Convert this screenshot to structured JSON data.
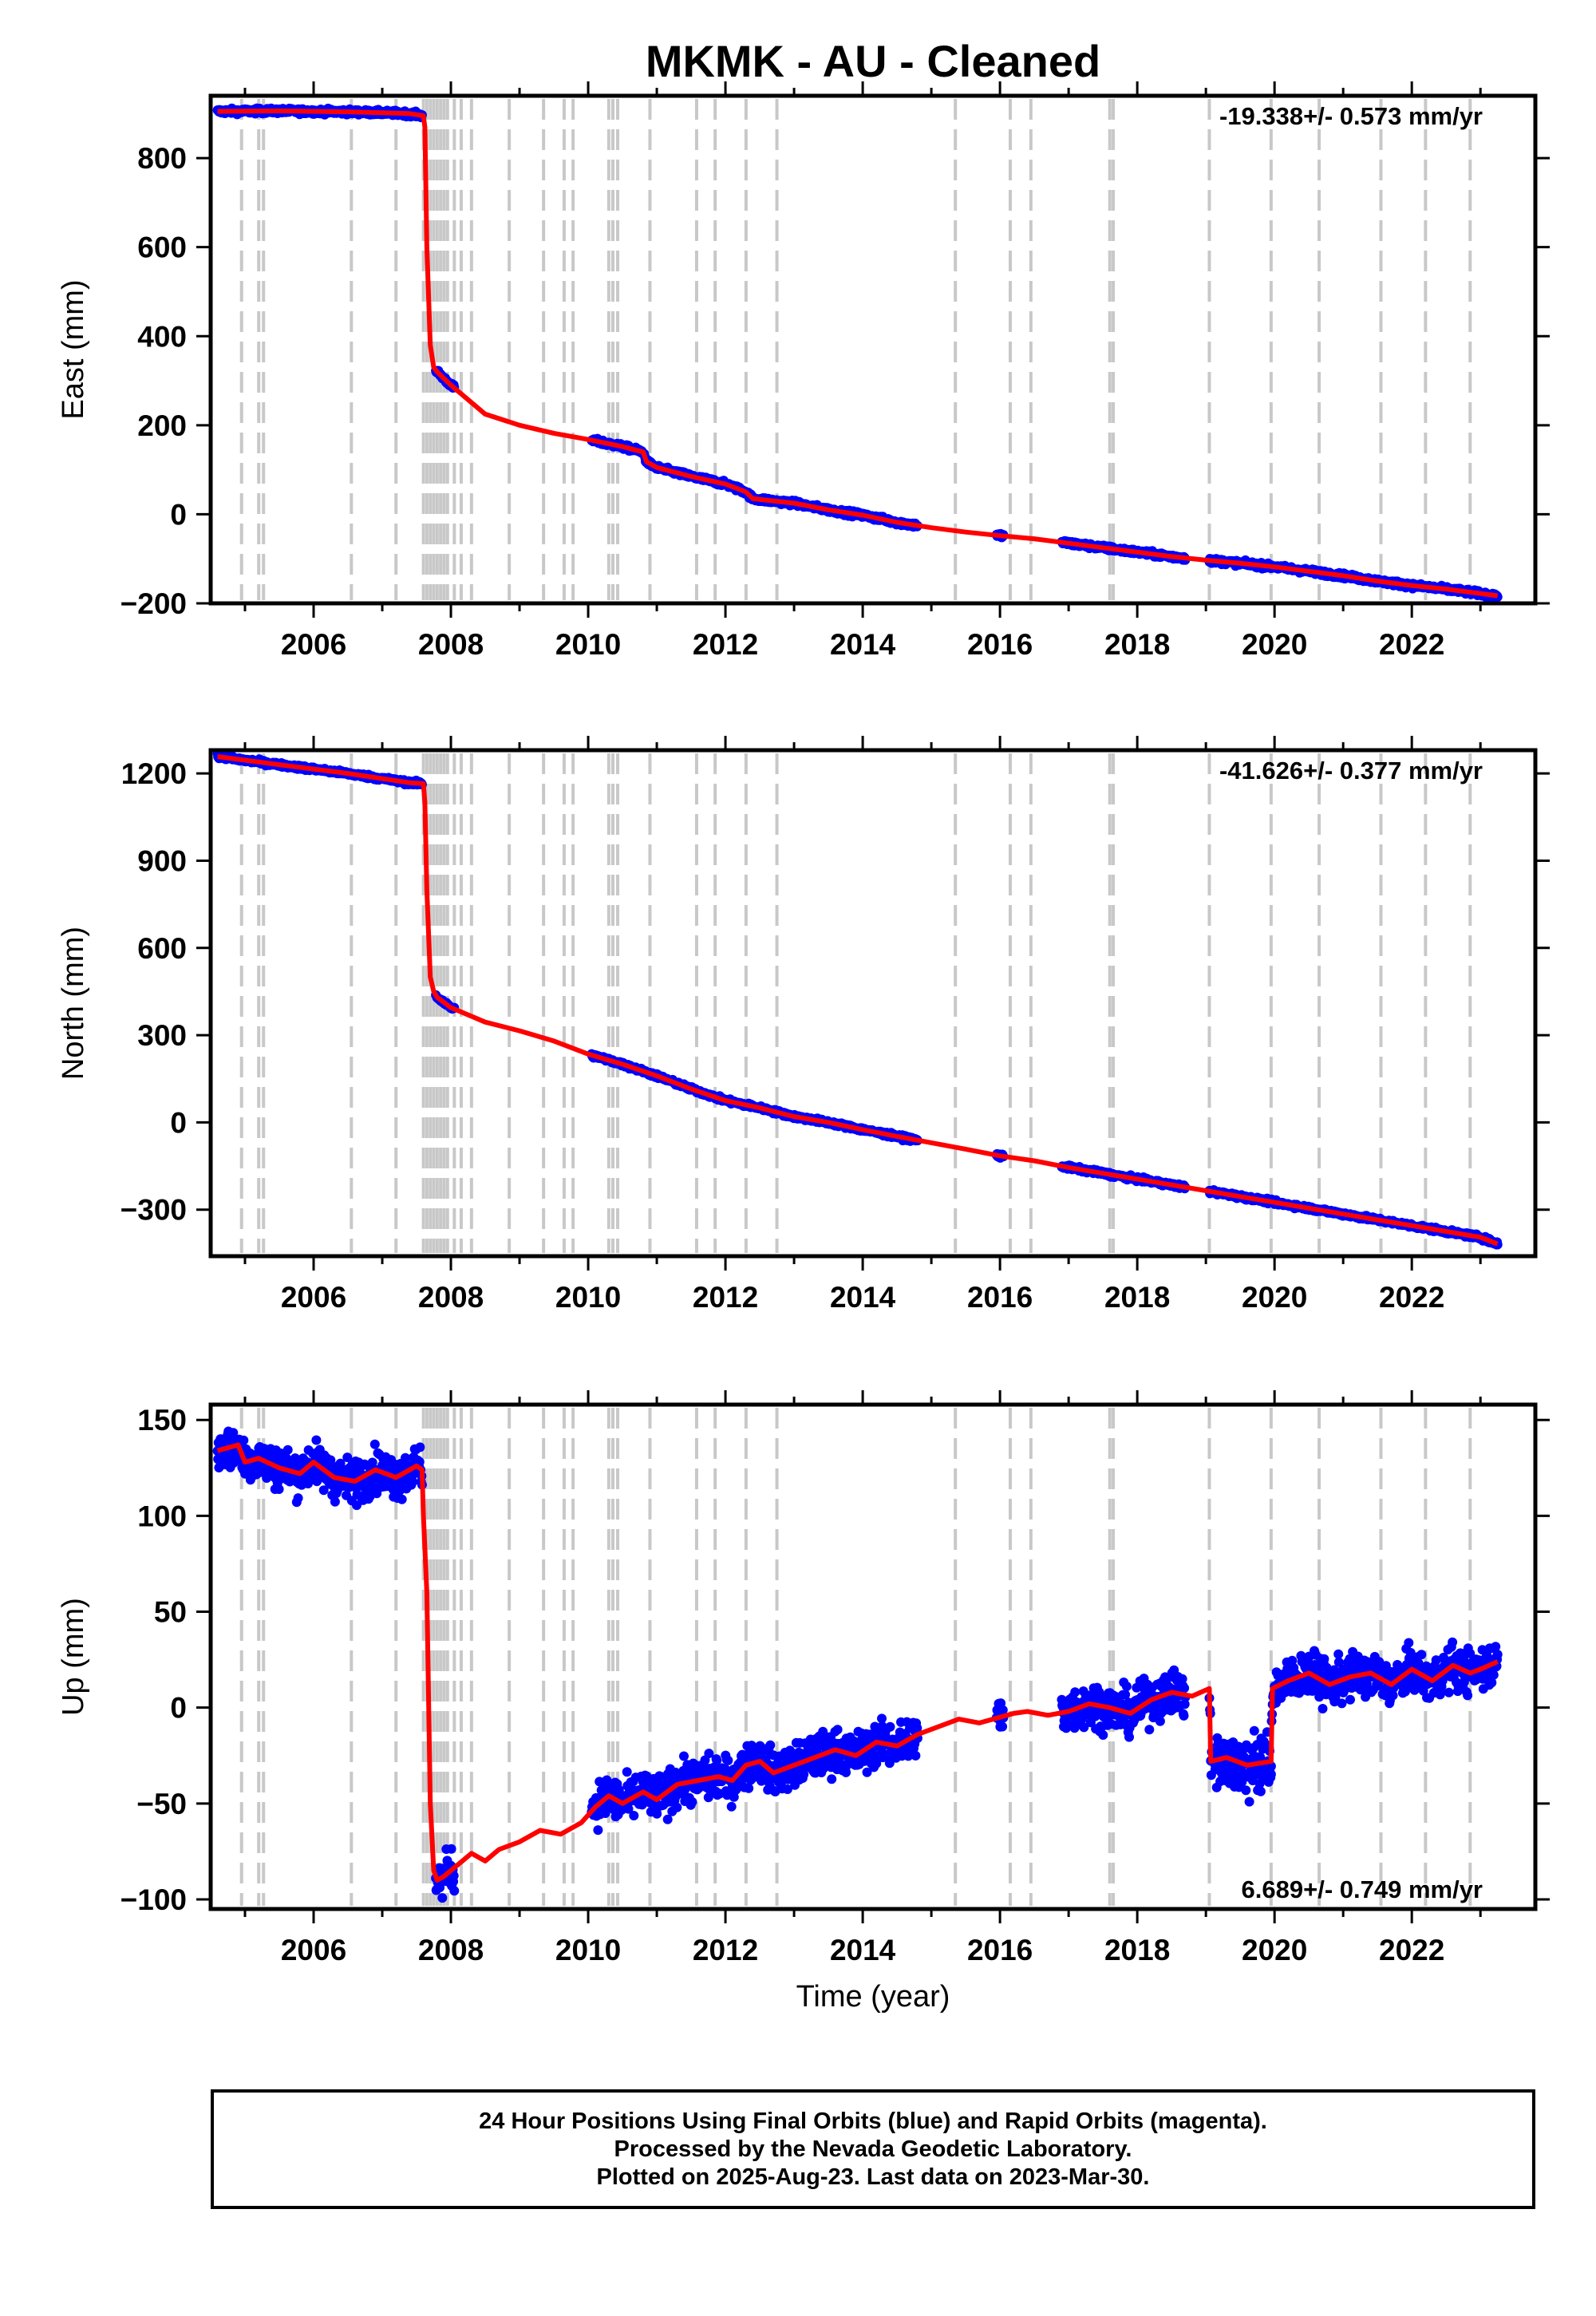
{
  "title": "MKMK  - AU - Cleaned",
  "colors": {
    "points": "#0000ff",
    "model": "#ff0000",
    "offset_lines": "#c8c8c8",
    "frame": "#000000"
  },
  "chart_data": [
    {
      "type": "scatter",
      "ylabel": "East (mm)",
      "xlabel": "",
      "rate_text": "-19.338+/- 0.573 mm/yr",
      "rate_position": "top-right",
      "xlim": [
        2004.5,
        2023.8
      ],
      "ylim": [
        -200,
        940
      ],
      "xticks": [
        2006,
        2008,
        2010,
        2012,
        2014,
        2016,
        2018,
        2020,
        2022
      ],
      "yticks": [
        -200,
        0,
        200,
        400,
        600,
        800
      ],
      "model": {
        "x": [
          2004.6,
          2005.5,
          2006.5,
          2007.4,
          2007.6,
          2007.62,
          2007.65,
          2007.7,
          2007.75,
          2007.8,
          2008.0,
          2008.5,
          2009.0,
          2009.5,
          2010.0,
          2010.5,
          2010.8,
          2010.85,
          2011.0,
          2011.5,
          2012.0,
          2012.3,
          2012.4,
          2013.0,
          2013.5,
          2014.0,
          2014.5,
          2015.0,
          2015.5,
          2016.0,
          2016.5,
          2017.0,
          2017.5,
          2018.0,
          2018.5,
          2019.0,
          2019.5,
          2020.0,
          2020.5,
          2021.0,
          2021.5,
          2022.0,
          2022.5,
          2023.0,
          2023.25
        ],
        "y": [
          905,
          906,
          904,
          900,
          895,
          870,
          600,
          380,
          330,
          320,
          290,
          225,
          200,
          182,
          168,
          152,
          140,
          118,
          105,
          85,
          68,
          50,
          35,
          25,
          10,
          -2,
          -18,
          -30,
          -40,
          -48,
          -55,
          -65,
          -75,
          -85,
          -95,
          -103,
          -110,
          -118,
          -128,
          -138,
          -150,
          -160,
          -168,
          -178,
          -183
        ]
      },
      "offsets": [
        2004.95,
        2005.2,
        2005.27,
        2006.55,
        2007.2,
        2007.6,
        2007.65,
        2007.7,
        2007.75,
        2007.8,
        2007.85,
        2007.9,
        2007.95,
        2008.05,
        2008.15,
        2008.3,
        2008.85,
        2009.35,
        2009.65,
        2009.78,
        2010.3,
        2010.36,
        2010.43,
        2010.9,
        2011.58,
        2011.85,
        2012.3,
        2012.75,
        2015.35,
        2016.15,
        2016.45,
        2017.6,
        2017.65,
        2019.05,
        2019.95,
        2020.65,
        2021.55,
        2022.2,
        2022.85
      ]
    },
    {
      "type": "scatter",
      "ylabel": "North (mm)",
      "xlabel": "",
      "rate_text": "-41.626+/- 0.377 mm/yr",
      "rate_position": "top-right",
      "xlim": [
        2004.5,
        2023.8
      ],
      "ylim": [
        -460,
        1280
      ],
      "xticks": [
        2006,
        2008,
        2010,
        2012,
        2014,
        2016,
        2018,
        2020,
        2022
      ],
      "yticks": [
        -300,
        0,
        300,
        600,
        900,
        1200
      ],
      "model": {
        "x": [
          2004.6,
          2005.5,
          2006.5,
          2007.4,
          2007.6,
          2007.62,
          2007.65,
          2007.7,
          2007.75,
          2007.8,
          2008.0,
          2008.5,
          2009.0,
          2009.5,
          2010.0,
          2010.5,
          2011.0,
          2011.5,
          2012.0,
          2012.5,
          2013.0,
          2013.5,
          2014.0,
          2014.5,
          2015.0,
          2015.5,
          2016.0,
          2016.5,
          2017.0,
          2017.5,
          2018.0,
          2018.5,
          2019.0,
          2019.5,
          2020.0,
          2020.5,
          2021.0,
          2021.5,
          2022.0,
          2022.5,
          2023.0,
          2023.25
        ],
        "y": [
          1258,
          1230,
          1200,
          1168,
          1165,
          1100,
          800,
          500,
          450,
          430,
          395,
          345,
          315,
          280,
          235,
          200,
          160,
          115,
          75,
          50,
          20,
          0,
          -25,
          -48,
          -70,
          -92,
          -115,
          -132,
          -155,
          -175,
          -195,
          -215,
          -235,
          -255,
          -275,
          -295,
          -315,
          -335,
          -355,
          -375,
          -395,
          -418
        ]
      },
      "offsets": [
        2004.95,
        2005.2,
        2005.27,
        2006.55,
        2007.2,
        2007.6,
        2007.65,
        2007.7,
        2007.75,
        2007.8,
        2007.85,
        2007.9,
        2007.95,
        2008.05,
        2008.15,
        2008.3,
        2008.85,
        2009.35,
        2009.65,
        2009.78,
        2010.3,
        2010.36,
        2010.43,
        2010.9,
        2011.58,
        2011.85,
        2012.3,
        2012.75,
        2015.35,
        2016.15,
        2016.45,
        2017.6,
        2017.65,
        2019.05,
        2019.95,
        2020.65,
        2021.55,
        2022.2,
        2022.85
      ]
    },
    {
      "type": "scatter",
      "ylabel": "Up (mm)",
      "xlabel": "Time (year)",
      "rate_text": "6.689+/- 0.749 mm/yr",
      "rate_position": "bottom-right",
      "xlim": [
        2004.5,
        2023.8
      ],
      "ylim": [
        -105,
        158
      ],
      "xticks": [
        2006,
        2008,
        2010,
        2012,
        2014,
        2016,
        2018,
        2020,
        2022
      ],
      "yticks": [
        -100,
        -50,
        0,
        50,
        100,
        150
      ],
      "model": {
        "x": [
          2004.6,
          2004.9,
          2005.0,
          2005.2,
          2005.5,
          2005.8,
          2006.0,
          2006.3,
          2006.6,
          2006.9,
          2007.2,
          2007.5,
          2007.58,
          2007.6,
          2007.65,
          2007.7,
          2007.75,
          2007.8,
          2007.9,
          2008.1,
          2008.3,
          2008.5,
          2008.7,
          2009.0,
          2009.3,
          2009.6,
          2009.9,
          2010.1,
          2010.3,
          2010.5,
          2010.8,
          2011.0,
          2011.3,
          2011.6,
          2011.9,
          2012.1,
          2012.3,
          2012.5,
          2012.7,
          2013.0,
          2013.3,
          2013.6,
          2013.9,
          2014.2,
          2014.5,
          2014.8,
          2015.1,
          2015.4,
          2015.7,
          2016.0,
          2016.2,
          2016.4,
          2016.7,
          2017.0,
          2017.3,
          2017.6,
          2017.9,
          2018.2,
          2018.5,
          2018.8,
          2019.05,
          2019.07,
          2019.3,
          2019.6,
          2019.95,
          2019.97,
          2020.2,
          2020.5,
          2020.8,
          2021.1,
          2021.4,
          2021.7,
          2022.0,
          2022.3,
          2022.6,
          2022.85,
          2023.0,
          2023.25
        ],
        "y": [
          134,
          137,
          128,
          130,
          125,
          122,
          128,
          120,
          118,
          124,
          120,
          126,
          124,
          100,
          60,
          -50,
          -85,
          -90,
          -88,
          -82,
          -76,
          -80,
          -74,
          -70,
          -64,
          -66,
          -60,
          -52,
          -46,
          -50,
          -44,
          -48,
          -40,
          -38,
          -36,
          -38,
          -30,
          -28,
          -34,
          -30,
          -26,
          -22,
          -25,
          -18,
          -20,
          -14,
          -10,
          -6,
          -8,
          -5,
          -3,
          -2,
          -4,
          -2,
          2,
          0,
          -3,
          4,
          8,
          6,
          10,
          -28,
          -26,
          -30,
          -28,
          10,
          14,
          18,
          12,
          16,
          18,
          12,
          20,
          14,
          22,
          18,
          20,
          24
        ]
      },
      "offsets": [
        2004.95,
        2005.2,
        2005.27,
        2006.55,
        2007.2,
        2007.6,
        2007.65,
        2007.7,
        2007.75,
        2007.8,
        2007.85,
        2007.9,
        2007.95,
        2008.05,
        2008.15,
        2008.3,
        2008.85,
        2009.35,
        2009.65,
        2009.78,
        2010.3,
        2010.36,
        2010.43,
        2010.9,
        2011.58,
        2011.85,
        2012.3,
        2012.75,
        2015.35,
        2016.15,
        2016.45,
        2017.6,
        2017.65,
        2019.05,
        2019.95,
        2020.65,
        2021.55,
        2022.2,
        2022.85
      ]
    }
  ],
  "data_spans": [
    [
      2004.6,
      2007.58
    ],
    [
      2007.78,
      2008.05
    ],
    [
      2010.05,
      2014.8
    ],
    [
      2015.95,
      2016.05
    ],
    [
      2016.9,
      2018.7
    ],
    [
      2019.05,
      2019.95
    ],
    [
      2019.95,
      2023.25
    ]
  ],
  "footer": {
    "line1": "24 Hour Positions Using Final Orbits (blue) and Rapid Orbits (magenta).",
    "line2": "Processed by the Nevada Geodetic Laboratory.",
    "line3": "Plotted on 2025-Aug-23. Last data on 2023-Mar-30."
  }
}
